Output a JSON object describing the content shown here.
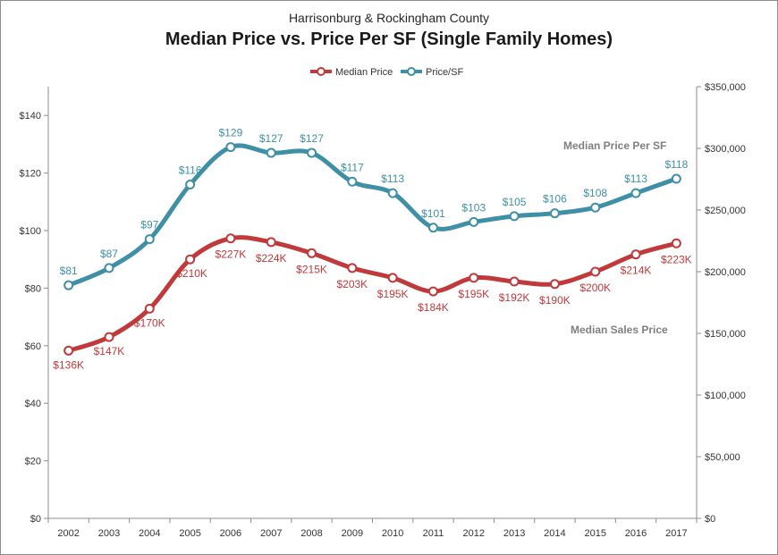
{
  "chart_data": {
    "type": "line",
    "subtitle": "Harrisonburg & Rockingham County",
    "title": "Median Price vs. Price Per SF (Single Family Homes)",
    "categories": [
      "2002",
      "2003",
      "2004",
      "2005",
      "2006",
      "2007",
      "2008",
      "2009",
      "2010",
      "2011",
      "2012",
      "2013",
      "2014",
      "2015",
      "2016",
      "2017"
    ],
    "y_left": {
      "ylim": [
        0,
        150
      ],
      "ticks": [
        0,
        20,
        40,
        60,
        80,
        100,
        120,
        140
      ],
      "tick_labels": [
        "$0",
        "$20",
        "$40",
        "$60",
        "$80",
        "$100",
        "$120",
        "$140"
      ]
    },
    "y_right": {
      "ylim": [
        0,
        350000
      ],
      "ticks": [
        0,
        50000,
        100000,
        150000,
        200000,
        250000,
        300000,
        350000
      ],
      "tick_labels": [
        "$0",
        "$50,000",
        "$100,000",
        "$150,000",
        "$200,000",
        "$250,000",
        "$300,000",
        "$350,000"
      ]
    },
    "legend": {
      "placement": "top-center",
      "items": [
        "Median Price",
        "Price/SF"
      ]
    },
    "series": [
      {
        "name": "Median Price",
        "axis": "right",
        "color": "#c0393b",
        "values": [
          136000,
          147000,
          170000,
          210000,
          227000,
          224000,
          215000,
          203000,
          195000,
          184000,
          195000,
          192000,
          190000,
          200000,
          214000,
          223000
        ],
        "labels": [
          "$136K",
          "$147K",
          "$170K",
          "$210K",
          "$227K",
          "$224K",
          "$215K",
          "$203K",
          "$195K",
          "$184K",
          "$195K",
          "$192K",
          "$190K",
          "$200K",
          "$214K",
          "$223K"
        ]
      },
      {
        "name": "Price/SF",
        "axis": "left",
        "color": "#3f8fa6",
        "values": [
          81,
          87,
          97,
          116,
          129,
          127,
          127,
          117,
          113,
          101,
          103,
          105,
          106,
          108,
          113,
          118
        ],
        "labels": [
          "$81",
          "$87",
          "$97",
          "$116",
          "$129",
          "$127",
          "$127",
          "$117",
          "$113",
          "$101",
          "$103",
          "$105",
          "$106",
          "$108",
          "$113",
          "$118"
        ]
      }
    ],
    "annotations": [
      "Median Price Per SF",
      "Median Sales Price"
    ],
    "grid": false
  }
}
